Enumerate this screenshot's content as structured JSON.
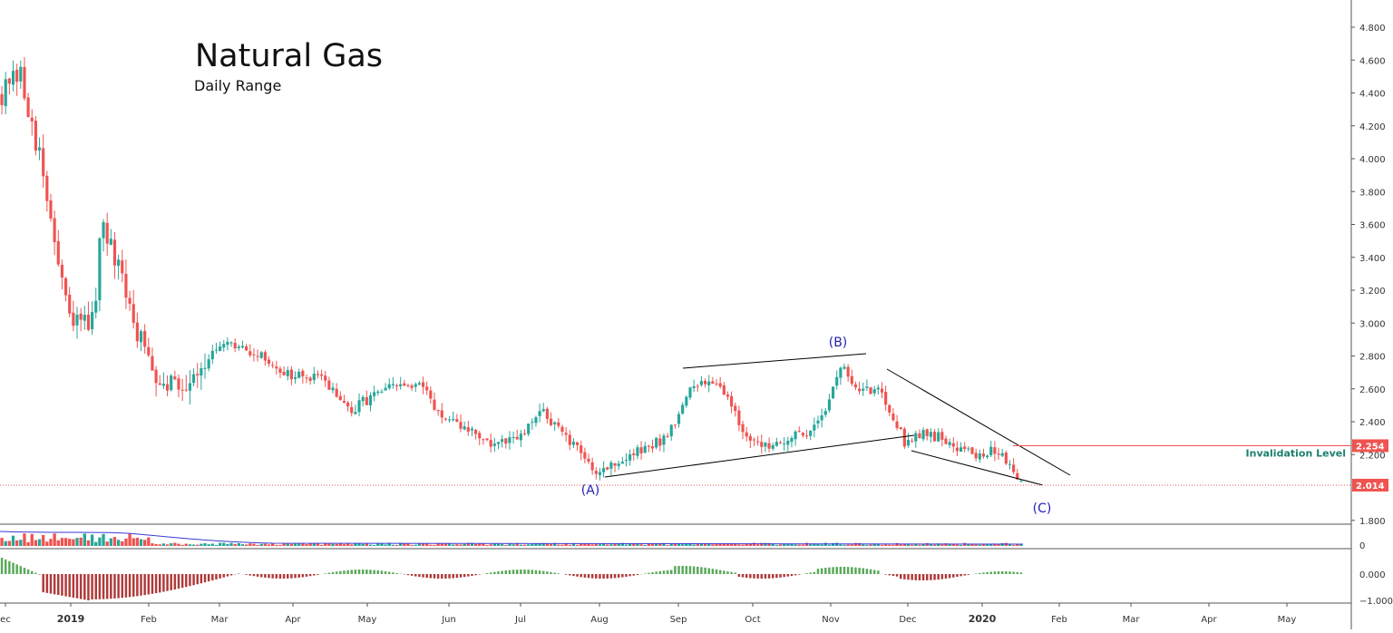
{
  "title": "Natural Gas",
  "subtitle": "Daily Range",
  "colors": {
    "up": "#26a69a",
    "down": "#ef5350",
    "trend": "#000000",
    "wave_label": "#1f1fb4",
    "invalidation": "#ef5350",
    "invalidation_text": "#1b7f6e",
    "macd_up": "#5aa95a",
    "macd_down": "#b03a3a"
  },
  "chart_data": {
    "type": "candlestick",
    "instrument": "Natural Gas",
    "period": "Daily",
    "x_tick_labels": [
      "ec",
      "2019",
      "Feb",
      "Mar",
      "Apr",
      "May",
      "Jun",
      "Jul",
      "Aug",
      "Sep",
      "Oct",
      "Nov",
      "Dec",
      "2020",
      "Feb",
      "Mar",
      "Apr",
      "May"
    ],
    "y_tick_labels": [
      "4.800",
      "4.600",
      "4.400",
      "4.200",
      "4.000",
      "3.800",
      "3.600",
      "3.400",
      "3.200",
      "3.000",
      "2.800",
      "2.600",
      "2.400",
      "2.200",
      "1.800"
    ],
    "y_ticks": [
      4.8,
      4.6,
      4.4,
      4.2,
      4.0,
      3.8,
      3.6,
      3.4,
      3.2,
      3.0,
      2.8,
      2.6,
      2.4,
      2.2,
      1.8
    ],
    "ylim": [
      1.75,
      4.9
    ],
    "close_path": [
      {
        "t": 0.0,
        "v": 4.4
      },
      {
        "t": 0.02,
        "v": 4.5
      },
      {
        "t": 0.035,
        "v": 4.2
      },
      {
        "t": 0.055,
        "v": 3.6
      },
      {
        "t": 0.075,
        "v": 3.0
      },
      {
        "t": 0.095,
        "v": 3.0
      },
      {
        "t": 0.105,
        "v": 3.2
      },
      {
        "t": 0.11,
        "v": 3.6
      },
      {
        "t": 0.13,
        "v": 3.3
      },
      {
        "t": 0.15,
        "v": 2.95
      },
      {
        "t": 0.17,
        "v": 2.7
      },
      {
        "t": 0.2,
        "v": 2.62
      },
      {
        "t": 0.225,
        "v": 2.78
      },
      {
        "t": 0.25,
        "v": 2.86
      },
      {
        "t": 0.28,
        "v": 2.82
      },
      {
        "t": 0.3,
        "v": 2.75
      },
      {
        "t": 0.32,
        "v": 2.68
      },
      {
        "t": 0.36,
        "v": 2.65
      },
      {
        "t": 0.385,
        "v": 2.45
      },
      {
        "t": 0.41,
        "v": 2.56
      },
      {
        "t": 0.44,
        "v": 2.62
      },
      {
        "t": 0.47,
        "v": 2.6
      },
      {
        "t": 0.49,
        "v": 2.4
      },
      {
        "t": 0.52,
        "v": 2.35
      },
      {
        "t": 0.545,
        "v": 2.25
      },
      {
        "t": 0.575,
        "v": 2.3
      },
      {
        "t": 0.6,
        "v": 2.47
      },
      {
        "t": 0.625,
        "v": 2.3
      },
      {
        "t": 0.66,
        "v": 2.1
      },
      {
        "t": 0.69,
        "v": 2.17
      },
      {
        "t": 0.735,
        "v": 2.3
      },
      {
        "t": 0.765,
        "v": 2.6
      },
      {
        "t": 0.79,
        "v": 2.67
      },
      {
        "t": 0.81,
        "v": 2.5
      },
      {
        "t": 0.83,
        "v": 2.25
      },
      {
        "t": 0.86,
        "v": 2.28
      },
      {
        "t": 0.89,
        "v": 2.32
      },
      {
        "t": 0.915,
        "v": 2.5
      },
      {
        "t": 0.93,
        "v": 2.74
      },
      {
        "t": 0.95,
        "v": 2.58
      },
      {
        "t": 0.975,
        "v": 2.6
      },
      {
        "t": 1.0,
        "v": 2.28
      },
      {
        "t": 1.02,
        "v": 2.34
      },
      {
        "t": 1.05,
        "v": 2.28
      },
      {
        "t": 1.08,
        "v": 2.2
      },
      {
        "t": 1.1,
        "v": 2.22
      },
      {
        "t": 1.115,
        "v": 2.17
      },
      {
        "t": 1.13,
        "v": 2.03
      }
    ],
    "wave_labels": [
      {
        "text": "(A)",
        "price": 2.05
      },
      {
        "text": "(B)",
        "price": 2.78
      },
      {
        "text": "(C)",
        "price": 2.014
      }
    ],
    "invalidation": {
      "price": 2.254,
      "label": "2.254",
      "text": "Invalidation Level"
    },
    "last_price": {
      "price": 2.014,
      "label": "2.014"
    },
    "volume_panel": {
      "tick_label": "0"
    },
    "oscillator_panel": {
      "tick_labels": [
        "0.000",
        "−1.000"
      ]
    }
  }
}
